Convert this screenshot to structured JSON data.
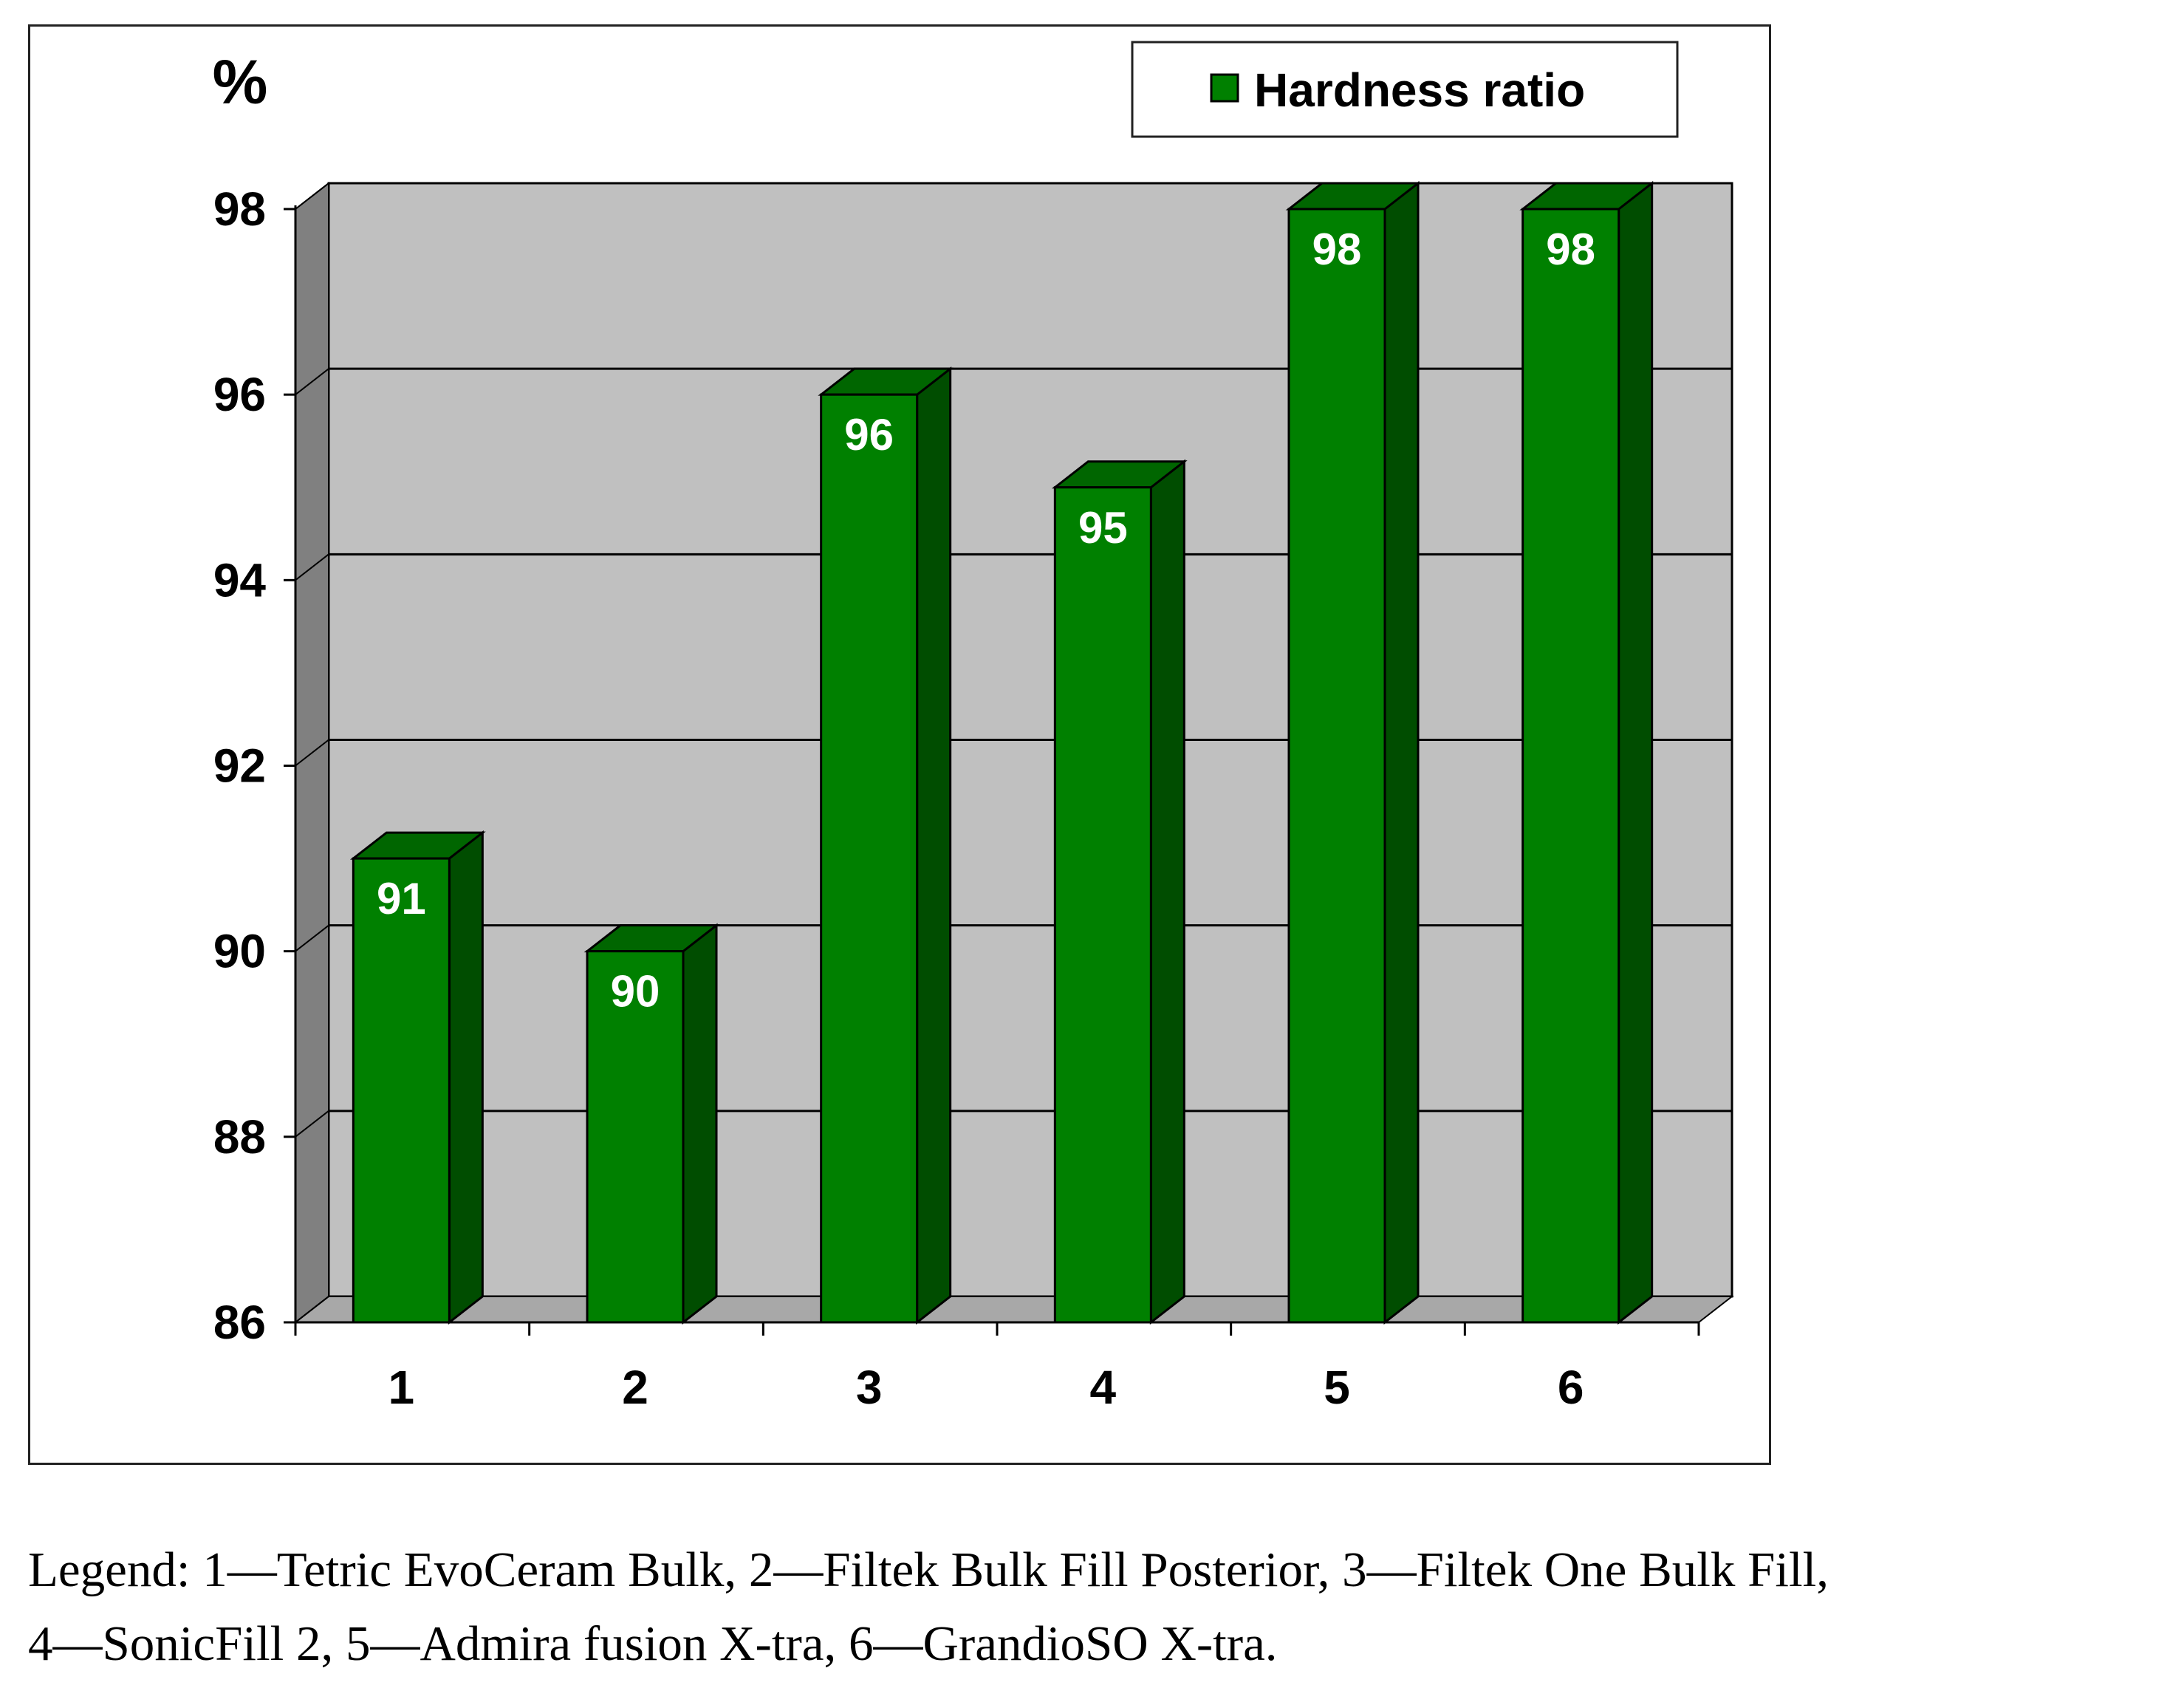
{
  "chart_data": {
    "type": "bar",
    "categories": [
      "1",
      "2",
      "3",
      "4",
      "5",
      "6"
    ],
    "series": [
      {
        "name": "Hardness ratio",
        "values": [
          91,
          90,
          96,
          95,
          98,
          98
        ]
      }
    ],
    "data_labels": [
      "91",
      "90",
      "96",
      "95",
      "98",
      "98"
    ],
    "ylabel": "%",
    "ylim": [
      86,
      98
    ],
    "yticks": [
      86,
      88,
      90,
      92,
      94,
      96,
      98
    ],
    "ytick_labels": [
      "86",
      "88",
      "90",
      "92",
      "94",
      "96",
      "98"
    ],
    "grid": true,
    "style": "3d-bar",
    "legend_position": "top-right",
    "colors": {
      "bar_front": "#008000",
      "bar_side": "#004d00",
      "bar_top": "#006600",
      "back_wall": "#c0c0c0",
      "side_wall": "#808080",
      "floor": "#a8a8a8"
    }
  },
  "caption": {
    "line1": "Legend: 1—Tetric EvoCeram Bulk, 2—Filtek Bulk Fill Posterior, 3—Filtek One Bulk Fill,",
    "line2": "4—SonicFill 2, 5—Admira fusion X-tra, 6—GrandioSO X-tra."
  }
}
